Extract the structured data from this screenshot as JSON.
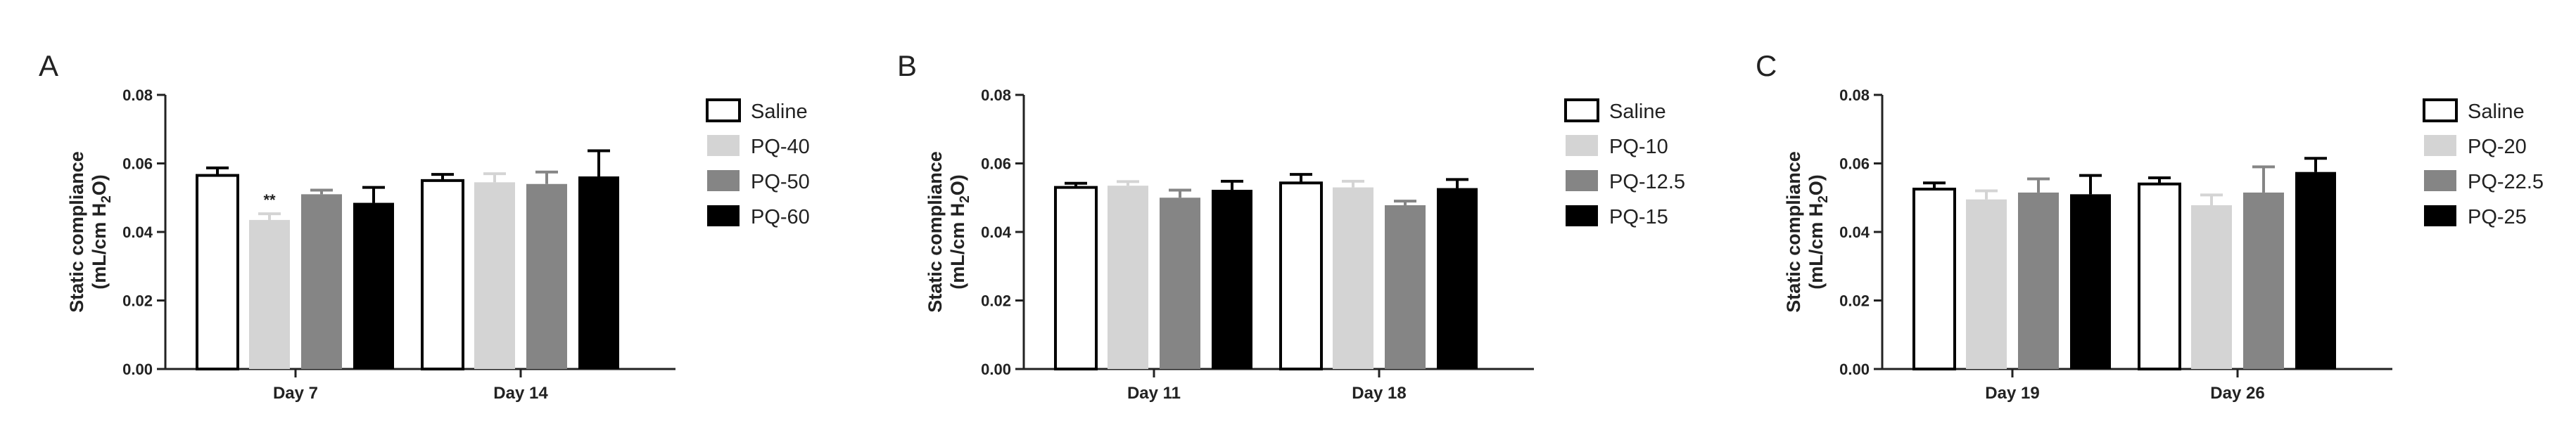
{
  "chart_data": [
    {
      "type": "bar",
      "panel": "A",
      "ylabel_main": "Static compliance",
      "ylabel_unit_pre": "(mL/cm H",
      "ylabel_unit_sub": "2",
      "ylabel_unit_post": "O)",
      "ylim": [
        0,
        0.08
      ],
      "yticks": [
        "0.00",
        "0.02",
        "0.04",
        "0.06",
        "0.08"
      ],
      "categories": [
        "Day 7",
        "Day 14"
      ],
      "legend_position": "right",
      "series": [
        {
          "name": "Saline",
          "color": "#ffffff",
          "values": [
            0.0565,
            0.055
          ],
          "errors": [
            0.0022,
            0.0018
          ]
        },
        {
          "name": "PQ-40",
          "color": "#d4d4d4",
          "values": [
            0.0435,
            0.0545
          ],
          "errors": [
            0.0018,
            0.0025
          ]
        },
        {
          "name": "PQ-50",
          "color": "#858585",
          "values": [
            0.051,
            0.054
          ],
          "errors": [
            0.0012,
            0.0035
          ]
        },
        {
          "name": "PQ-60",
          "color": "#000000",
          "values": [
            0.0485,
            0.0562
          ],
          "errors": [
            0.0045,
            0.0075
          ]
        }
      ],
      "annotations": [
        {
          "category": "Day 7",
          "series": "PQ-40",
          "text": "**"
        }
      ]
    },
    {
      "type": "bar",
      "panel": "B",
      "ylabel_main": "Static compliance",
      "ylabel_unit_pre": "(mL/cm H",
      "ylabel_unit_sub": "2",
      "ylabel_unit_post": "O)",
      "ylim": [
        0,
        0.08
      ],
      "yticks": [
        "0.00",
        "0.02",
        "0.04",
        "0.06",
        "0.08"
      ],
      "categories": [
        "Day 11",
        "Day 18"
      ],
      "legend_position": "right",
      "series": [
        {
          "name": "Saline",
          "color": "#ffffff",
          "values": [
            0.053,
            0.0543
          ],
          "errors": [
            0.0012,
            0.0025
          ]
        },
        {
          "name": "PQ-10",
          "color": "#d4d4d4",
          "values": [
            0.0535,
            0.053
          ],
          "errors": [
            0.0012,
            0.0018
          ]
        },
        {
          "name": "PQ-12.5",
          "color": "#858585",
          "values": [
            0.05,
            0.0478
          ],
          "errors": [
            0.0022,
            0.0012
          ]
        },
        {
          "name": "PQ-15",
          "color": "#000000",
          "values": [
            0.0523,
            0.0528
          ],
          "errors": [
            0.0025,
            0.0025
          ]
        }
      ],
      "annotations": []
    },
    {
      "type": "bar",
      "panel": "C",
      "ylabel_main": "Static compliance",
      "ylabel_unit_pre": "(mL/cm H",
      "ylabel_unit_sub": "2",
      "ylabel_unit_post": "O)",
      "ylim": [
        0,
        0.08
      ],
      "yticks": [
        "0.00",
        "0.02",
        "0.04",
        "0.06",
        "0.08"
      ],
      "categories": [
        "Day 19",
        "Day 26"
      ],
      "legend_position": "right",
      "series": [
        {
          "name": "Saline",
          "color": "#ffffff",
          "values": [
            0.0525,
            0.054
          ],
          "errors": [
            0.0018,
            0.0018
          ]
        },
        {
          "name": "PQ-20",
          "color": "#d4d4d4",
          "values": [
            0.0495,
            0.0478
          ],
          "errors": [
            0.0025,
            0.003
          ]
        },
        {
          "name": "PQ-22.5",
          "color": "#858585",
          "values": [
            0.0515,
            0.0515
          ],
          "errors": [
            0.004,
            0.0075
          ]
        },
        {
          "name": "PQ-25",
          "color": "#000000",
          "values": [
            0.051,
            0.0575
          ],
          "errors": [
            0.0055,
            0.004
          ]
        }
      ],
      "annotations": []
    }
  ]
}
